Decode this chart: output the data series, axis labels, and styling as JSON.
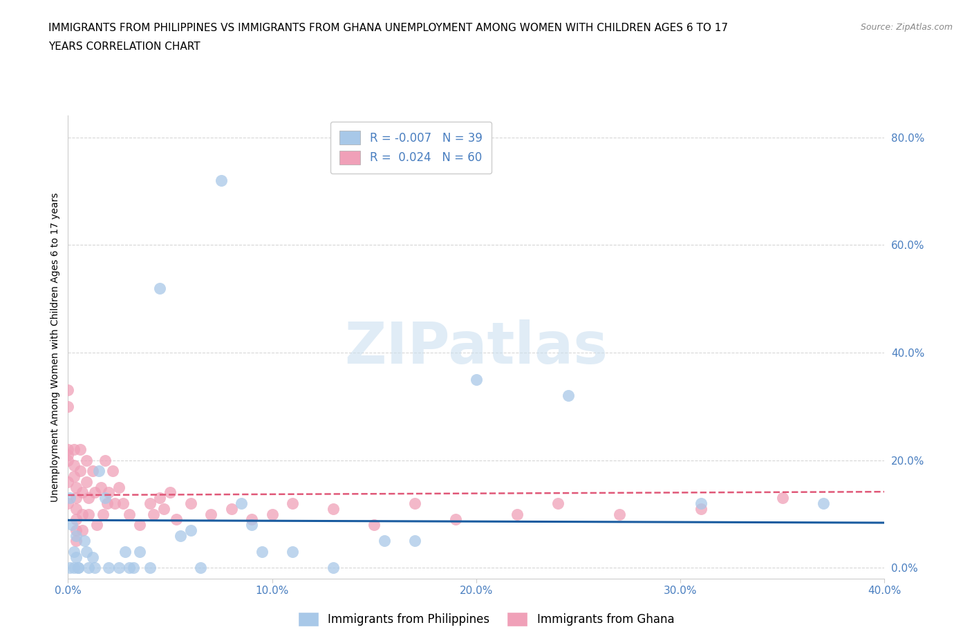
{
  "title_line1": "IMMIGRANTS FROM PHILIPPINES VS IMMIGRANTS FROM GHANA UNEMPLOYMENT AMONG WOMEN WITH CHILDREN AGES 6 TO 17",
  "title_line2": "YEARS CORRELATION CHART",
  "source": "Source: ZipAtlas.com",
  "ylabel_label": "Unemployment Among Women with Children Ages 6 to 17 years",
  "xlim": [
    0.0,
    0.4
  ],
  "ylim": [
    -0.02,
    0.84
  ],
  "yticks": [
    0.0,
    0.2,
    0.4,
    0.6,
    0.8
  ],
  "xticks": [
    0.0,
    0.1,
    0.2,
    0.3,
    0.4
  ],
  "r_philippines": -0.007,
  "n_philippines": 39,
  "r_ghana": 0.024,
  "n_ghana": 60,
  "color_philippines": "#a8c8e8",
  "color_ghana": "#f0a0b8",
  "line_color_philippines": "#1a5ca0",
  "line_color_ghana": "#e05878",
  "watermark": "ZIPatlas",
  "philippines_x": [
    0.001,
    0.001,
    0.002,
    0.003,
    0.003,
    0.004,
    0.004,
    0.005,
    0.005,
    0.008,
    0.009,
    0.01,
    0.012,
    0.013,
    0.015,
    0.018,
    0.02,
    0.025,
    0.028,
    0.03,
    0.032,
    0.035,
    0.04,
    0.045,
    0.055,
    0.06,
    0.065,
    0.075,
    0.085,
    0.09,
    0.095,
    0.11,
    0.13,
    0.155,
    0.17,
    0.2,
    0.245,
    0.31,
    0.37
  ],
  "philippines_y": [
    0.13,
    0.0,
    0.08,
    0.03,
    0.0,
    0.06,
    0.02,
    0.0,
    0.0,
    0.05,
    0.03,
    0.0,
    0.02,
    0.0,
    0.18,
    0.13,
    0.0,
    0.0,
    0.03,
    0.0,
    0.0,
    0.03,
    0.0,
    0.52,
    0.06,
    0.07,
    0.0,
    0.72,
    0.12,
    0.08,
    0.03,
    0.03,
    0.0,
    0.05,
    0.05,
    0.35,
    0.32,
    0.12,
    0.12
  ],
  "ghana_x": [
    0.0,
    0.0,
    0.0,
    0.0,
    0.0,
    0.0,
    0.0,
    0.003,
    0.003,
    0.003,
    0.004,
    0.004,
    0.004,
    0.004,
    0.004,
    0.004,
    0.006,
    0.006,
    0.007,
    0.007,
    0.007,
    0.009,
    0.009,
    0.01,
    0.01,
    0.012,
    0.013,
    0.014,
    0.016,
    0.017,
    0.018,
    0.019,
    0.02,
    0.022,
    0.023,
    0.025,
    0.027,
    0.03,
    0.035,
    0.04,
    0.042,
    0.045,
    0.047,
    0.05,
    0.053,
    0.06,
    0.07,
    0.08,
    0.09,
    0.1,
    0.11,
    0.13,
    0.15,
    0.17,
    0.19,
    0.22,
    0.24,
    0.27,
    0.31,
    0.35
  ],
  "ghana_y": [
    0.33,
    0.3,
    0.22,
    0.21,
    0.2,
    0.16,
    0.12,
    0.22,
    0.19,
    0.17,
    0.15,
    0.13,
    0.11,
    0.09,
    0.07,
    0.05,
    0.22,
    0.18,
    0.14,
    0.1,
    0.07,
    0.2,
    0.16,
    0.13,
    0.1,
    0.18,
    0.14,
    0.08,
    0.15,
    0.1,
    0.2,
    0.12,
    0.14,
    0.18,
    0.12,
    0.15,
    0.12,
    0.1,
    0.08,
    0.12,
    0.1,
    0.13,
    0.11,
    0.14,
    0.09,
    0.12,
    0.1,
    0.11,
    0.09,
    0.1,
    0.12,
    0.11,
    0.08,
    0.12,
    0.09,
    0.1,
    0.12,
    0.1,
    0.11,
    0.13
  ]
}
